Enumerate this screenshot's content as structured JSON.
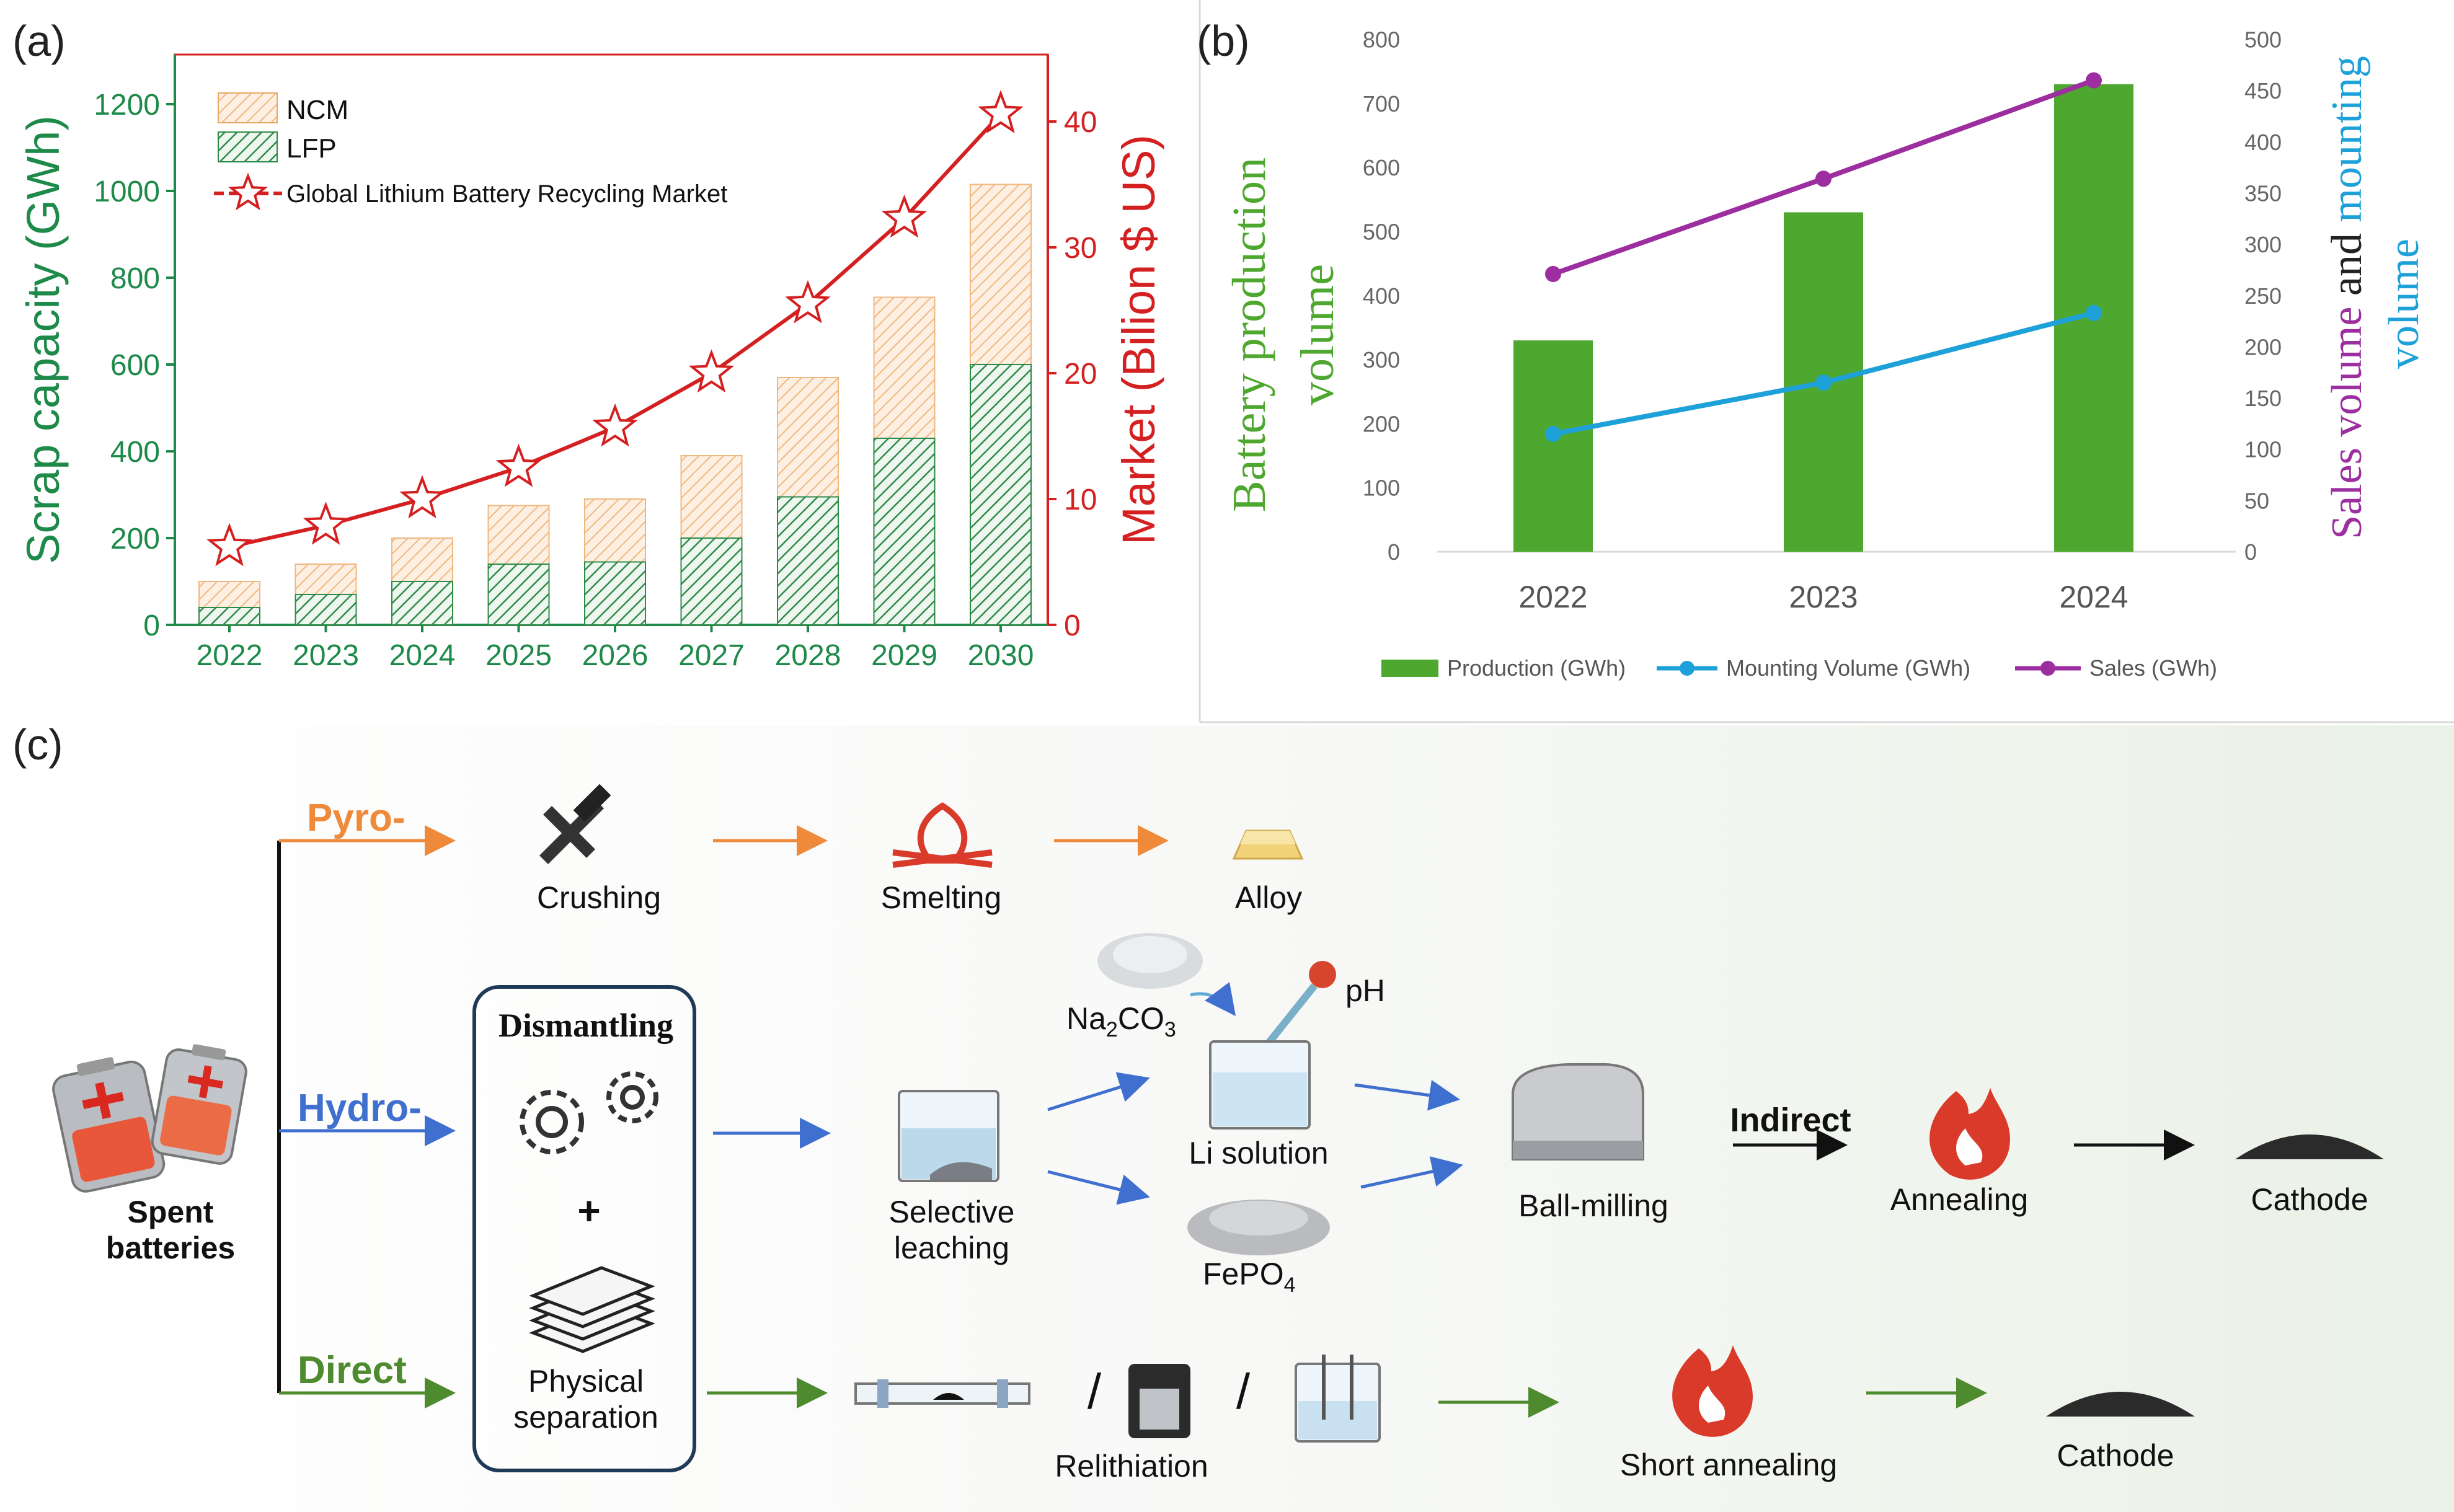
{
  "panels": {
    "a": "(a)",
    "b": "(b)",
    "c": "(c)"
  },
  "chart_data": [
    {
      "type": "bar",
      "stacked": true,
      "categories": [
        "2022",
        "2023",
        "2024",
        "2025",
        "2026",
        "2027",
        "2028",
        "2029",
        "2030"
      ],
      "series": [
        {
          "name": "LFP",
          "values": [
            40,
            70,
            100,
            140,
            145,
            200,
            295,
            430,
            600
          ],
          "color": "#2f8a47"
        },
        {
          "name": "NCM",
          "values": [
            60,
            70,
            100,
            135,
            145,
            190,
            275,
            325,
            415
          ],
          "color": "#f0b780"
        }
      ],
      "line_series": {
        "name": "Global Lithium Battery Recycling Market",
        "values": [
          6.2,
          7.9,
          10.0,
          12.5,
          15.7,
          20.0,
          25.5,
          32.3,
          40.6
        ],
        "color": "#d42020"
      },
      "ylabel": "Scrap capacity (GWh)",
      "y2label": "Market (Bilion $ US)",
      "ylim": [
        0,
        1300
      ],
      "yticks": [
        0,
        200,
        400,
        600,
        800,
        1000,
        1200
      ],
      "y2lim": [
        0,
        45
      ],
      "y2ticks": [
        0,
        10,
        20,
        30,
        40
      ],
      "legend": "top-left",
      "colors": {
        "left_axis": "#1e8a4a",
        "right_axis": "#d42020"
      }
    },
    {
      "type": "bar",
      "categories": [
        "2022",
        "2023",
        "2024"
      ],
      "series": [
        {
          "name": "Production (GWh)",
          "values": [
            330,
            530,
            730
          ],
          "color": "#4ea72e",
          "axis": "left"
        },
        {
          "name": "Mounting Volume (GWh)",
          "values": [
            115,
            165,
            233
          ],
          "color": "#1ea1d9",
          "axis": "right",
          "type": "line"
        },
        {
          "name": "Sales (GWh)",
          "values": [
            271,
            364,
            460
          ],
          "color": "#9c2ea0",
          "axis": "right",
          "type": "line"
        }
      ],
      "ylabel_parts": [
        "Battery production",
        "volume"
      ],
      "y2label_parts": [
        {
          "text": "Sales volume",
          "color": "#9c2ea0"
        },
        {
          "text": " and ",
          "color": "#222222"
        },
        {
          "text": "mounting",
          "color": "#1ea1d9"
        },
        {
          "text": "volume",
          "color": "#1ea1d9"
        }
      ],
      "ylim": [
        0,
        800
      ],
      "yticks": [
        0,
        100,
        200,
        300,
        400,
        500,
        600,
        700,
        800
      ],
      "y2lim": [
        0,
        500
      ],
      "y2ticks": [
        0,
        50,
        100,
        150,
        200,
        250,
        300,
        350,
        400,
        450,
        500
      ],
      "grid": false,
      "legend": "bottom"
    }
  ],
  "diagram": {
    "routes": {
      "pyro": "Pyro-",
      "hydro": "Hydro-",
      "direct": "Direct"
    },
    "route_colors": {
      "pyro": "#ee8a3a",
      "hydro": "#3f6fcf",
      "direct": "#4e8a2e"
    },
    "start": {
      "line1": "Spent",
      "line2": "batteries"
    },
    "dismantling": {
      "title": "Dismantling",
      "plus": "+",
      "sep1": "Physical",
      "sep2": "separation"
    },
    "pyro": {
      "crushing": "Crushing",
      "smelting": "Smelting",
      "alloy": "Alloy"
    },
    "hydro": {
      "na2co3": {
        "base": "Na",
        "sub1": "2",
        "mid": "CO",
        "sub2": "3"
      },
      "ph": "pH",
      "li_solution": "Li solution",
      "leach1": "Selective",
      "leach2": "leaching",
      "fepo4": {
        "base": "FePO",
        "sub": "4"
      },
      "ball_milling": "Ball-milling",
      "indirect": "Indirect",
      "annealing": "Annealing",
      "cathode": "Cathode"
    },
    "direct": {
      "slash": "/",
      "relithiation": "Relithiation",
      "short_annealing": "Short annealing",
      "cathode": "Cathode"
    }
  }
}
